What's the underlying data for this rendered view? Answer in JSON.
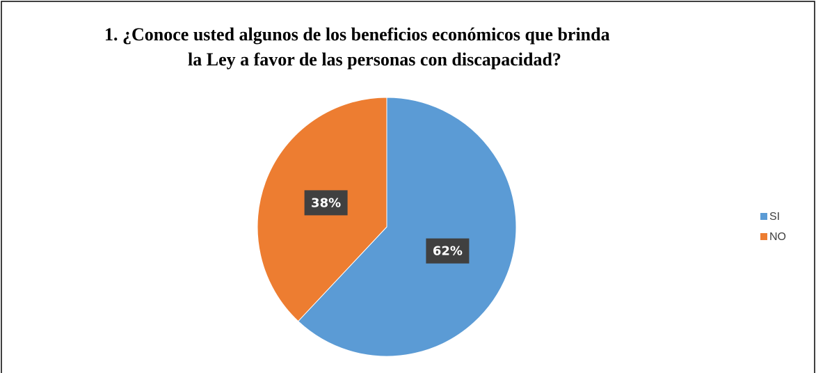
{
  "chart_data": {
    "type": "pie",
    "title": [
      "1.    ¿Conoce usted algunos de los beneficios económicos que brinda",
      "la Ley a favor de las personas con discapacidad?"
    ],
    "categories": [
      "SI",
      "NO"
    ],
    "values": [
      62,
      38
    ],
    "value_labels": [
      "62%",
      "38%"
    ],
    "colors": [
      "#5b9bd5",
      "#ed7d31"
    ],
    "legend": "right"
  }
}
